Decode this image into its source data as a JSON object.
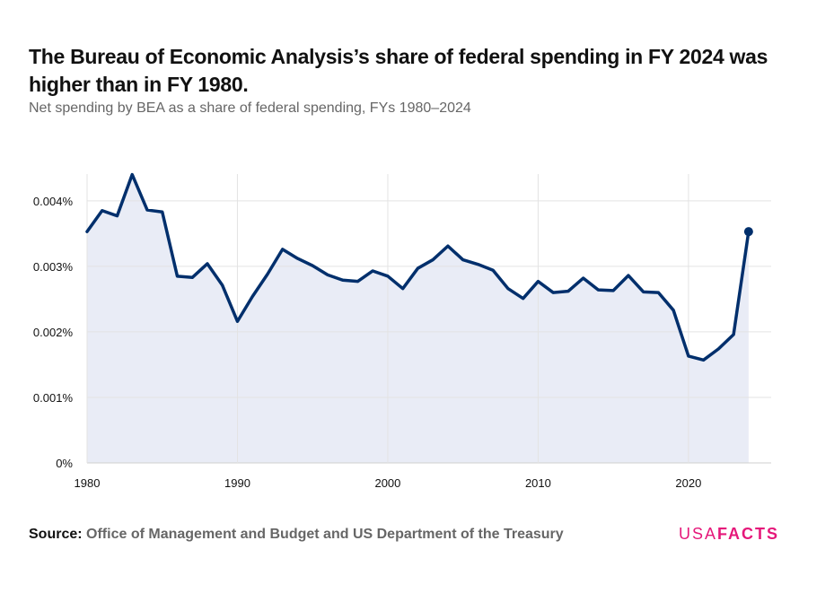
{
  "title": "The Bureau of Economic Analysis’s share of federal spending in FY 2024 was higher than in FY 1980.",
  "subtitle": "Net spending by BEA as a share of federal spending, FYs 1980–2024",
  "source_label": "Source:",
  "source_text": "Office of Management and Budget and US Department of the Treasury",
  "logo": {
    "usa": "USA",
    "facts": "FACTS"
  },
  "colors": {
    "line": "#002f6c",
    "area_fill": "#e9ecf6",
    "grid": "#e3e3e3",
    "logo": "#e5187a"
  },
  "chart_data": {
    "type": "area",
    "x_unit": "fiscal year",
    "y_unit": "percent of federal spending",
    "xlim": [
      1980,
      2025.5
    ],
    "ylim": [
      0,
      0.0046
    ],
    "x_ticks": [
      1980,
      1990,
      2000,
      2010,
      2020
    ],
    "y_ticks": [
      {
        "value": 0,
        "label": "0%"
      },
      {
        "value": 0.001,
        "label": "0.001%"
      },
      {
        "value": 0.002,
        "label": "0.002%"
      },
      {
        "value": 0.003,
        "label": "0.003%"
      },
      {
        "value": 0.004,
        "label": "0.004%"
      }
    ],
    "grid": true,
    "highlight_last_point": true,
    "series": [
      {
        "x": [
          1980,
          1981,
          1982,
          1983,
          1984,
          1985,
          1986,
          1987,
          1988,
          1989,
          1990,
          1991,
          1992,
          1993,
          1994,
          1995,
          1996,
          1997,
          1998,
          1999,
          2000,
          2001,
          2002,
          2003,
          2004,
          2005,
          2006,
          2007,
          2008,
          2009,
          2010,
          2011,
          2012,
          2013,
          2014,
          2015,
          2016,
          2017,
          2018,
          2019,
          2020,
          2021,
          2022,
          2023,
          2024
        ],
        "values": [
          0.00353,
          0.00385,
          0.00377,
          0.0044,
          0.00386,
          0.00383,
          0.00285,
          0.00283,
          0.00304,
          0.00271,
          0.00216,
          0.00254,
          0.00288,
          0.00326,
          0.00312,
          0.00301,
          0.00287,
          0.00279,
          0.00277,
          0.00293,
          0.00285,
          0.00266,
          0.00297,
          0.0031,
          0.00331,
          0.0031,
          0.00303,
          0.00294,
          0.00266,
          0.00251,
          0.00277,
          0.0026,
          0.00262,
          0.00282,
          0.00264,
          0.00263,
          0.00286,
          0.00261,
          0.0026,
          0.00233,
          0.00163,
          0.00157,
          0.00174,
          0.00196,
          0.00353
        ]
      }
    ]
  }
}
